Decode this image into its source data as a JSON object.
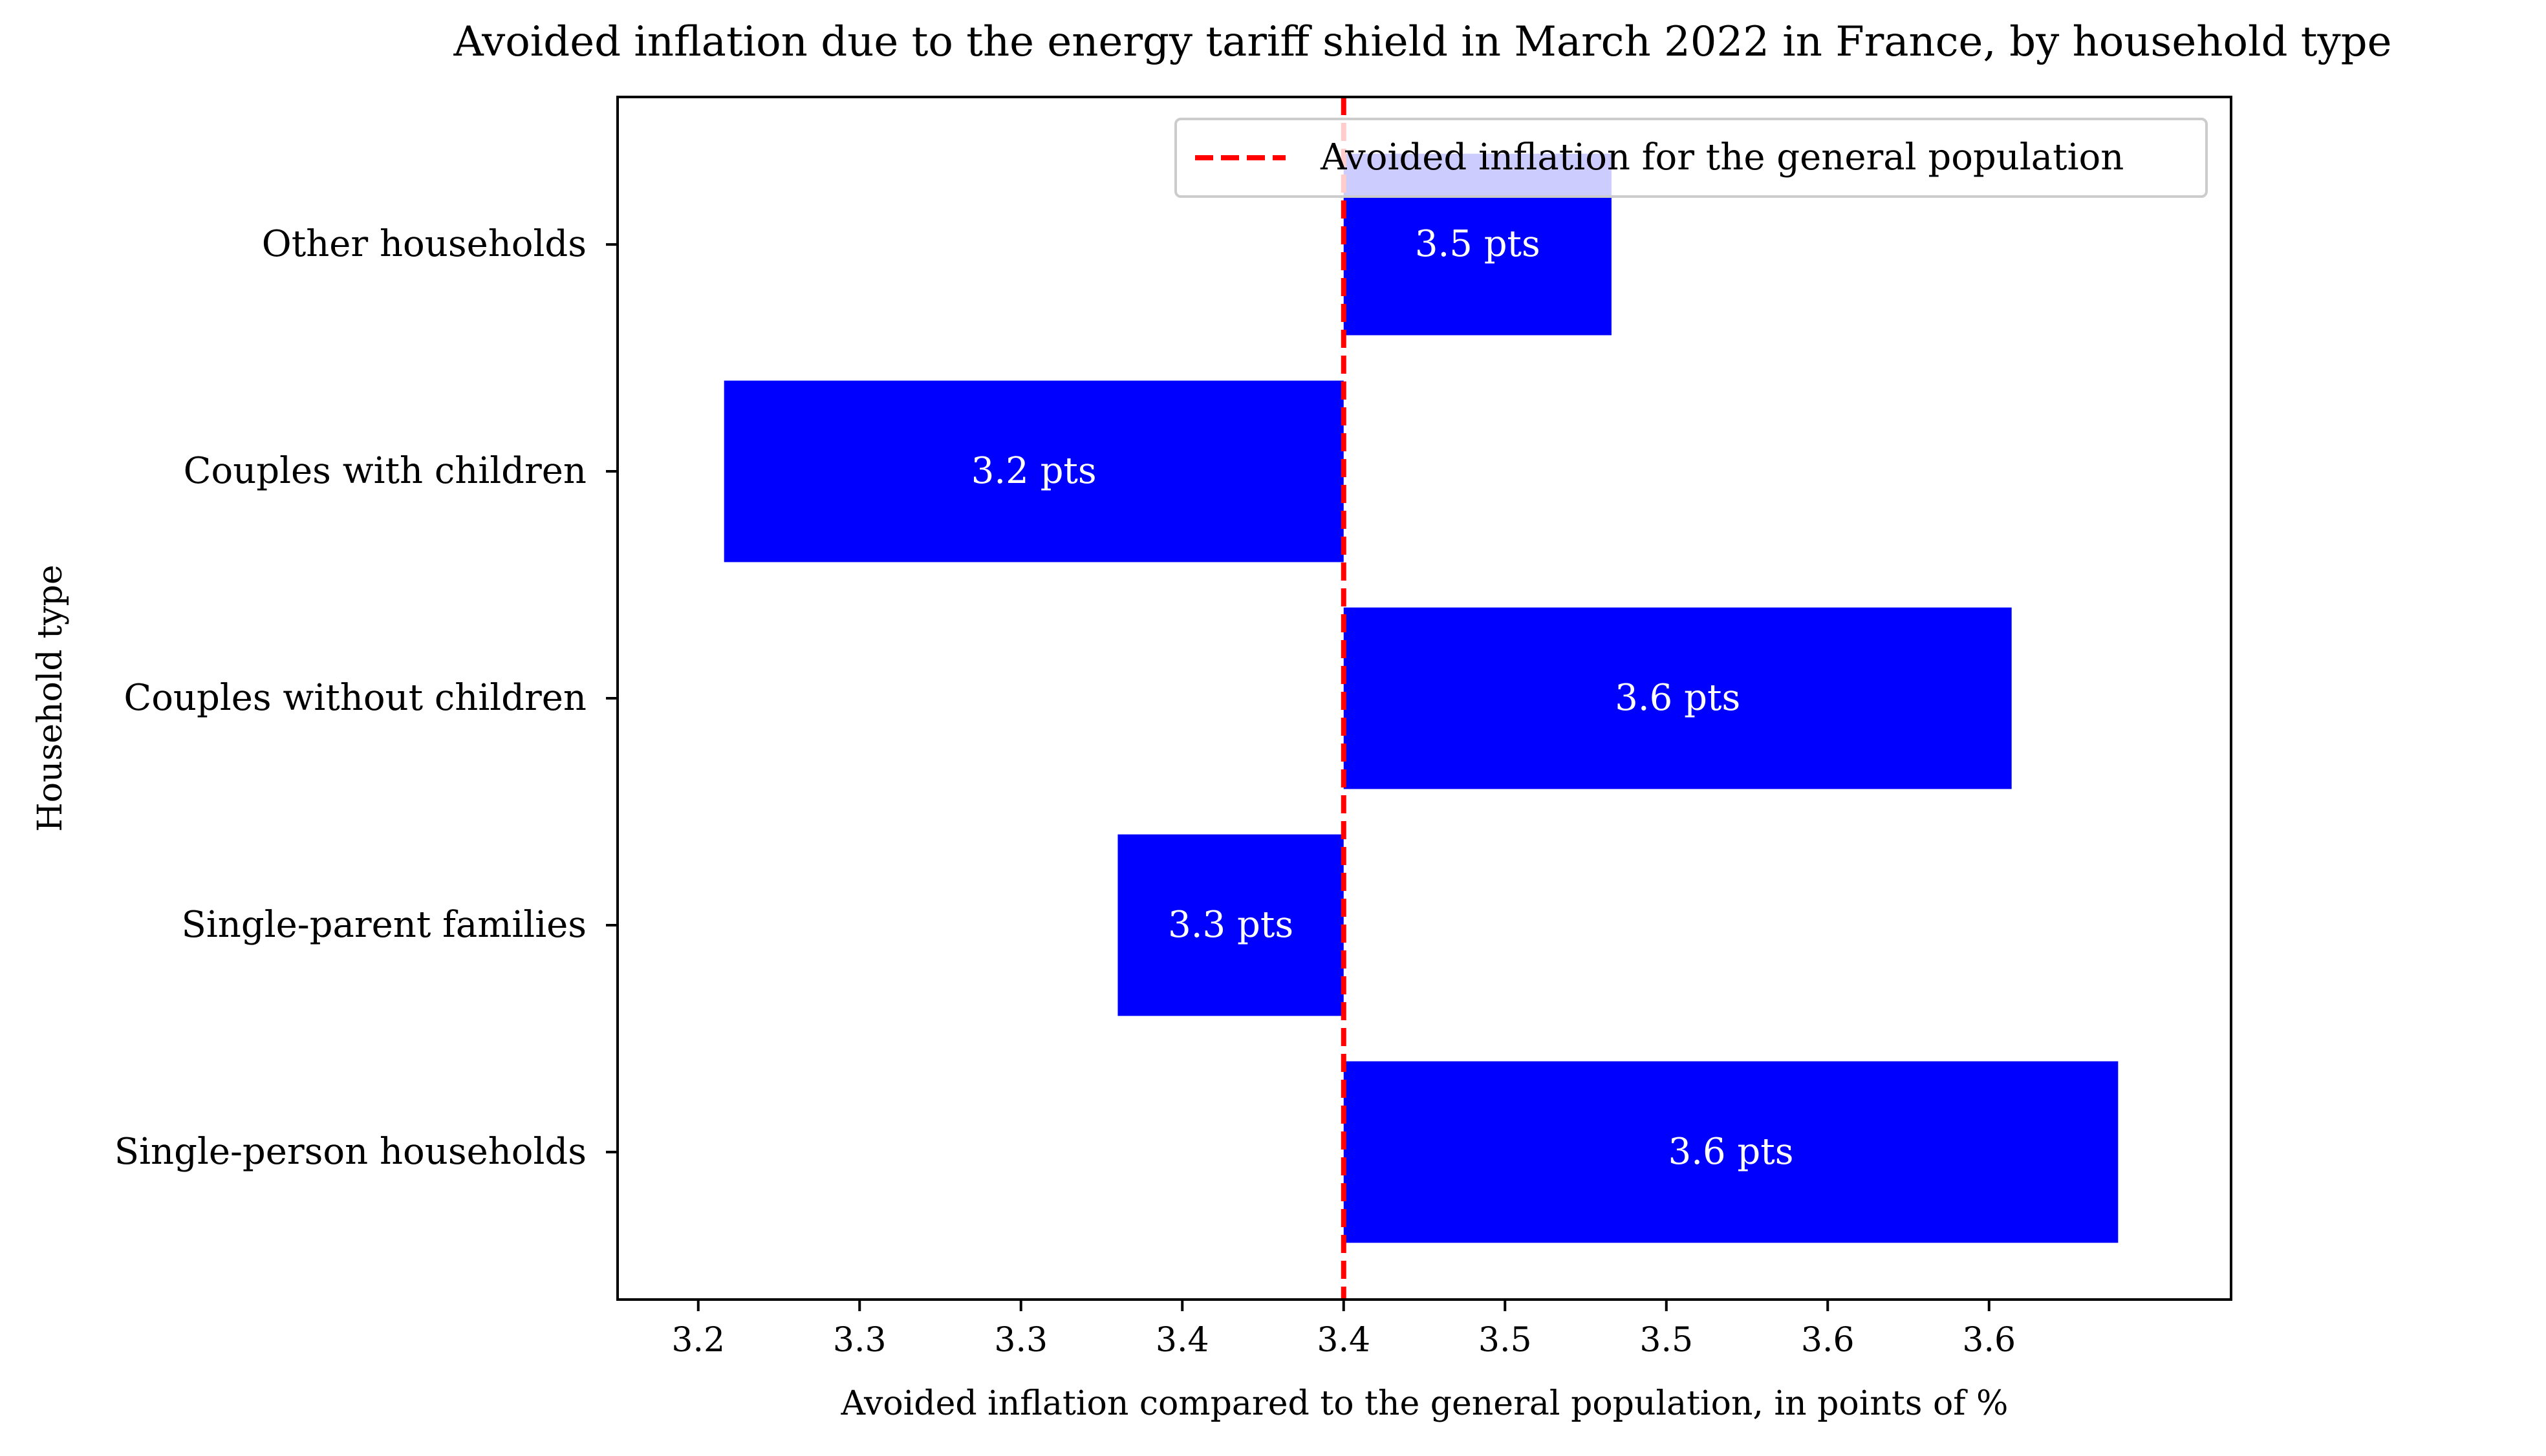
{
  "chart_data": {
    "type": "bar",
    "orientation": "horizontal",
    "title": "Avoided inflation due to the energy tariff shield in March 2022 in France, by household type",
    "xlabel": "Avoided inflation compared to the general population, in points of %",
    "ylabel": "Household type",
    "xlim": [
      3.175,
      3.675
    ],
    "x_ticks": [
      3.2,
      3.25,
      3.3,
      3.35,
      3.4,
      3.45,
      3.5,
      3.55,
      3.6
    ],
    "x_tick_labels": [
      "3.2",
      "3.3",
      "3.3",
      "3.4",
      "3.4",
      "3.5",
      "3.5",
      "3.6",
      "3.6"
    ],
    "baseline": 3.4,
    "categories": [
      "Single-person households",
      "Single-parent families",
      "Couples without children",
      "Couples with children",
      "Other households"
    ],
    "values": [
      3.64,
      3.33,
      3.607,
      3.208,
      3.483
    ],
    "data_labels": [
      "3.6 pts",
      "3.3 pts",
      "3.6 pts",
      "3.2 pts",
      "3.5 pts"
    ],
    "bar_color": "#0000ff",
    "bar_label_color": "#ffffff",
    "reference_line": {
      "value": 3.4,
      "label": "Avoided inflation for the general population",
      "color": "#ff0000",
      "style": "dashed"
    },
    "legend_placement": "upper-right",
    "grid": false
  }
}
